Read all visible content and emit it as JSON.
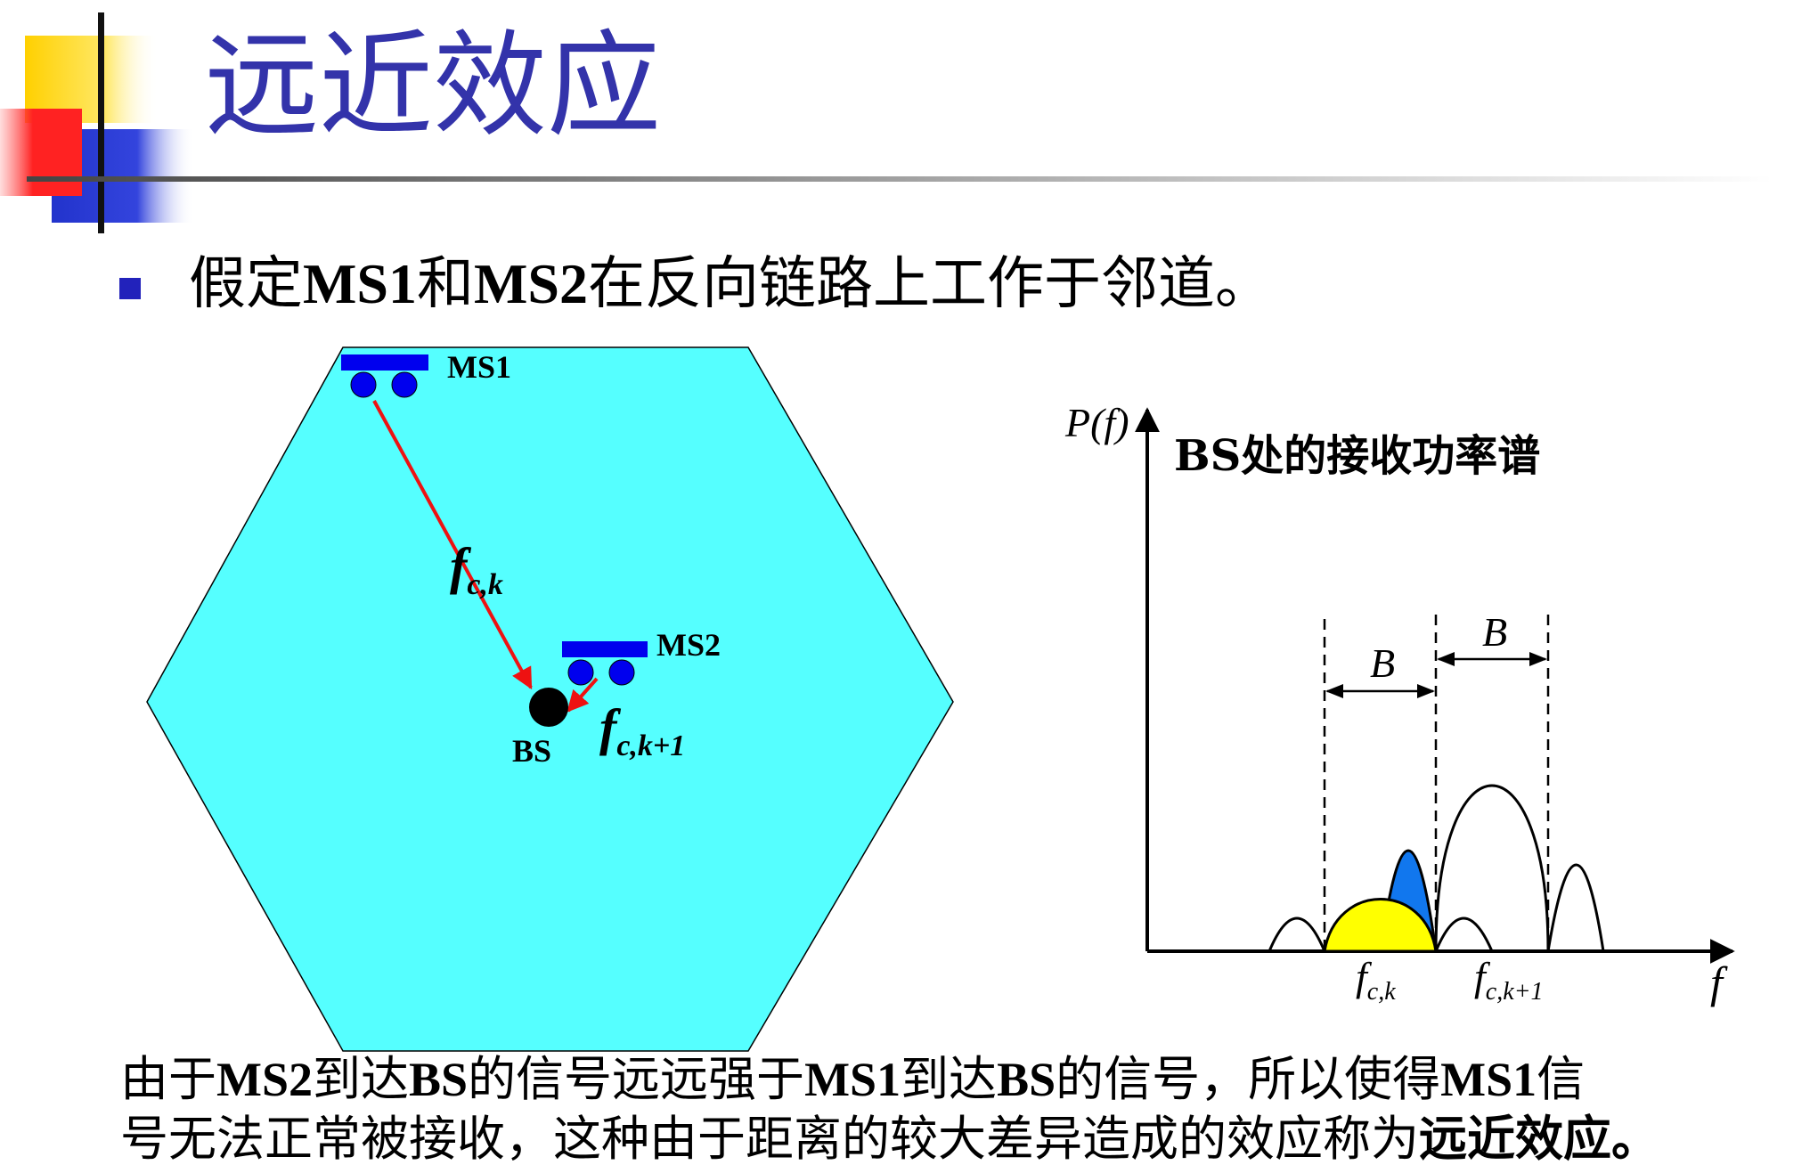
{
  "title": "远近效应",
  "bullet": {
    "segments": [
      {
        "text": "假定",
        "bold": false
      },
      {
        "text": "MS1",
        "bold": true
      },
      {
        "text": "和",
        "bold": false
      },
      {
        "text": "MS2",
        "bold": true
      },
      {
        "text": "在反向链路上工作于邻道。",
        "bold": false
      }
    ]
  },
  "cell": {
    "ms1_label": "MS1",
    "ms2_label": "MS2",
    "bs_label": "BS",
    "freq_ms1": {
      "base": "f",
      "sub": "c,k"
    },
    "freq_ms2": {
      "base": "f",
      "sub": "c,k+1"
    }
  },
  "spectrum": {
    "y_axis_label": "P(f)",
    "x_axis_label": "f",
    "title": "BS处的接收功率谱",
    "bandwidth_label_left": "B",
    "bandwidth_label_right": "B",
    "tick_fck": {
      "base": "f",
      "sub": "c,k"
    },
    "tick_fck1": {
      "base": "f",
      "sub": "c,k+1"
    }
  },
  "caption": {
    "line1": [
      {
        "text": "由于",
        "bold": false
      },
      {
        "text": "MS2",
        "bold": true
      },
      {
        "text": "到达",
        "bold": false
      },
      {
        "text": "BS",
        "bold": true
      },
      {
        "text": "的信号远远强于",
        "bold": false
      },
      {
        "text": "MS1",
        "bold": true
      },
      {
        "text": "到达",
        "bold": false
      },
      {
        "text": "BS",
        "bold": true
      },
      {
        "text": "的信号，所以使得",
        "bold": false
      },
      {
        "text": "MS1",
        "bold": true
      },
      {
        "text": "信",
        "bold": false
      }
    ],
    "line2": [
      {
        "text": "号无法正常被接收，这种由于距离的较大差异造成的效应称为",
        "bold": false
      },
      {
        "text": "远近效应。",
        "bold": true
      }
    ]
  },
  "colors": {
    "title": "#3333aa",
    "cell_fill": "#55ffff",
    "mobile": "#0000ee",
    "arrow": "#ee1111",
    "bullet": "#2222bb",
    "lobe_yellow": "#ffff00",
    "lobe_blue": "#1177ee"
  }
}
